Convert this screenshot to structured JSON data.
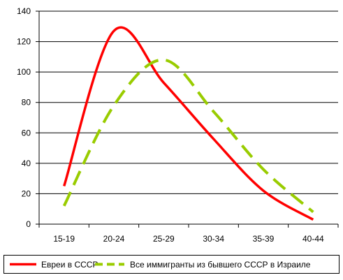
{
  "chart_data": {
    "type": "line",
    "categories": [
      "15-19",
      "20-24",
      "25-29",
      "30-34",
      "35-39",
      "40-44"
    ],
    "ylim": [
      0,
      140
    ],
    "yticks": [
      0,
      20,
      40,
      60,
      80,
      100,
      120,
      140
    ],
    "grid": true,
    "legend_position": "bottom",
    "series": [
      {
        "name": "Евреи в СССР",
        "color": "#ff0000",
        "style": "solid",
        "points": [
          {
            "x": "15-19",
            "y": 25
          },
          {
            "x": "20-24",
            "y": 127
          },
          {
            "x": "25-29",
            "y": 93
          },
          {
            "x": "30-34",
            "y": 56
          },
          {
            "x": "35-39",
            "y": 22
          },
          {
            "x": "40-44",
            "y": 3
          }
        ]
      },
      {
        "name": "Все иммигранты из бывшего СССР в Израиле",
        "color": "#99cc00",
        "style": "dashed",
        "points": [
          {
            "x": "15-19",
            "y": 12
          },
          {
            "x": "20-24",
            "y": 78
          },
          {
            "x": "25-29",
            "y": 108
          },
          {
            "x": "30-34",
            "y": 74
          },
          {
            "x": "35-39",
            "y": 36
          },
          {
            "x": "40-44",
            "y": 8
          }
        ]
      }
    ]
  }
}
